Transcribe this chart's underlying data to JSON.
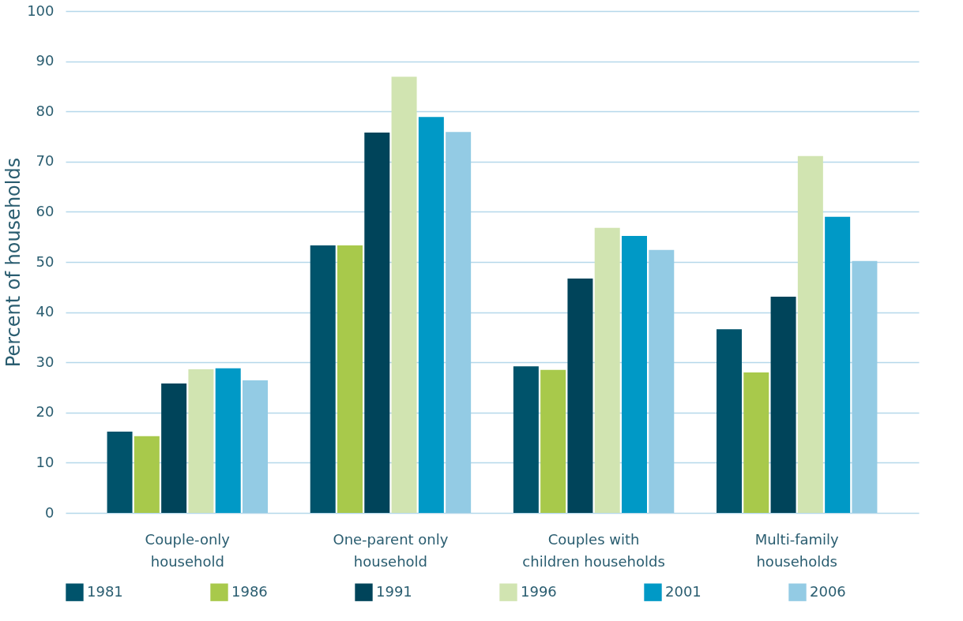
{
  "chart_data": {
    "type": "bar",
    "ylabel": "Percent of households",
    "categories": [
      "Couple-only\nhousehold",
      "One-parent only\nhousehold",
      "Couples with\nchildren households",
      "Multi-family\nhouseholds"
    ],
    "series": [
      {
        "name": "1981",
        "color": "#00536b",
        "values": [
          16.2,
          53.3,
          29.2,
          36.6
        ]
      },
      {
        "name": "1986",
        "color": "#a8c94b",
        "values": [
          15.3,
          53.3,
          28.5,
          28.0
        ]
      },
      {
        "name": "1991",
        "color": "#00445a",
        "values": [
          25.8,
          75.8,
          46.7,
          43.1
        ]
      },
      {
        "name": "1996",
        "color": "#d1e4b1",
        "values": [
          28.6,
          86.9,
          56.8,
          71.1
        ]
      },
      {
        "name": "2001",
        "color": "#0099c6",
        "values": [
          28.8,
          78.9,
          55.2,
          59.0
        ]
      },
      {
        "name": "2006",
        "color": "#93cbe4",
        "values": [
          26.4,
          75.9,
          52.4,
          50.2
        ]
      }
    ],
    "ylim": [
      0,
      100
    ],
    "yticks": [
      0,
      10,
      20,
      30,
      40,
      50,
      60,
      70,
      80,
      90,
      100
    ],
    "grid": "y",
    "legend": "bottom"
  }
}
